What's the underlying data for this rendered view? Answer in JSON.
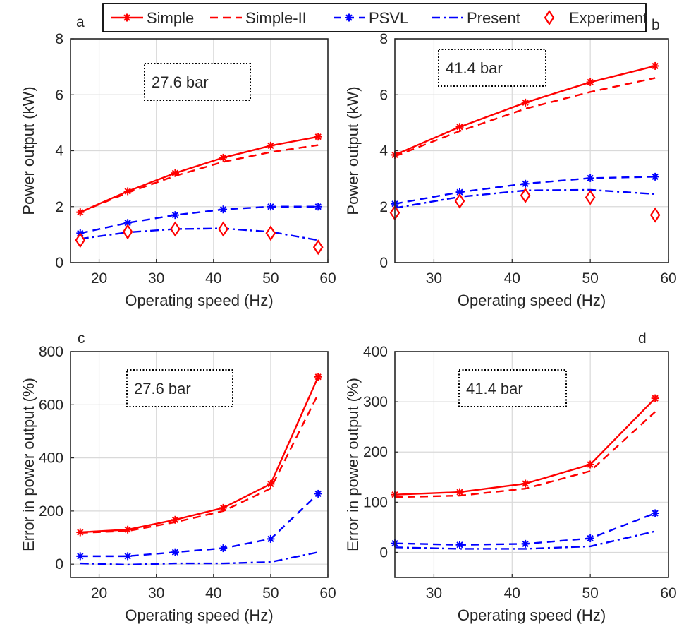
{
  "colors": {
    "red": "#ff0000",
    "blue": "#0000ff",
    "grid": "#d9d9d9",
    "axis": "#262626"
  },
  "legend": {
    "entries": [
      {
        "label": "Simple",
        "color": "#ff0000",
        "line": "solid",
        "marker": "asterisk"
      },
      {
        "label": "Simple-II",
        "color": "#ff0000",
        "line": "dashed",
        "marker": "none"
      },
      {
        "label": "PSVL",
        "color": "#0000ff",
        "line": "dashed",
        "marker": "asterisk"
      },
      {
        "label": "Present",
        "color": "#0000ff",
        "line": "dashdot",
        "marker": "none"
      },
      {
        "label": "Experiment",
        "color": "#ff0000",
        "line": "none",
        "marker": "diamond"
      }
    ]
  },
  "chart_data": [
    {
      "panel_label": "a",
      "type": "line",
      "annotation": "27.6 bar",
      "xlabel": "Operating speed (Hz)",
      "ylabel": "Power output (kW)",
      "xlim": [
        15,
        60
      ],
      "ylim": [
        0,
        8
      ],
      "xticks": [
        20,
        30,
        40,
        50,
        60
      ],
      "yticks": [
        0,
        2,
        4,
        6,
        8
      ],
      "grid": true,
      "x": [
        16.7,
        25,
        33.3,
        41.7,
        50,
        58.3
      ],
      "series": [
        {
          "name": "Simple",
          "values": [
            1.8,
            2.55,
            3.2,
            3.75,
            4.18,
            4.5
          ]
        },
        {
          "name": "Simple-II",
          "values": [
            1.8,
            2.5,
            3.1,
            3.6,
            3.95,
            4.2
          ]
        },
        {
          "name": "PSVL",
          "values": [
            1.05,
            1.42,
            1.7,
            1.9,
            2.0,
            2.0
          ]
        },
        {
          "name": "Present",
          "values": [
            0.85,
            1.08,
            1.2,
            1.22,
            1.1,
            0.8
          ]
        },
        {
          "name": "Experiment",
          "values": [
            0.8,
            1.1,
            1.2,
            1.2,
            1.05,
            0.55
          ]
        }
      ]
    },
    {
      "panel_label": "b",
      "type": "line",
      "annotation": "41.4 bar",
      "xlabel": "Operating speed (Hz)",
      "ylabel": "Power output (kW)",
      "xlim": [
        25,
        60
      ],
      "ylim": [
        0,
        8
      ],
      "xticks": [
        30,
        40,
        50,
        60
      ],
      "yticks": [
        0,
        2,
        4,
        6,
        8
      ],
      "grid": true,
      "x": [
        25,
        33.3,
        41.7,
        50,
        58.3
      ],
      "series": [
        {
          "name": "Simple",
          "values": [
            3.85,
            4.85,
            5.72,
            6.45,
            7.03
          ]
        },
        {
          "name": "Simple-II",
          "values": [
            3.8,
            4.7,
            5.5,
            6.1,
            6.6
          ]
        },
        {
          "name": "PSVL",
          "values": [
            2.1,
            2.52,
            2.82,
            3.02,
            3.07
          ]
        },
        {
          "name": "Present",
          "values": [
            1.95,
            2.35,
            2.58,
            2.6,
            2.45
          ]
        },
        {
          "name": "Experiment",
          "values": [
            1.78,
            2.2,
            2.4,
            2.33,
            1.7
          ]
        }
      ]
    },
    {
      "panel_label": "c",
      "type": "line",
      "annotation": "27.6 bar",
      "xlabel": "Operating speed (Hz)",
      "ylabel": "Error in power output (%)",
      "xlim": [
        15,
        60
      ],
      "ylim": [
        -50,
        800
      ],
      "xticks": [
        20,
        30,
        40,
        50,
        60
      ],
      "yticks": [
        0,
        200,
        400,
        600,
        800
      ],
      "grid": true,
      "x": [
        16.7,
        25,
        33.3,
        41.7,
        50,
        58.3
      ],
      "series": [
        {
          "name": "Simple",
          "values": [
            120,
            130,
            167,
            212,
            302,
            705
          ]
        },
        {
          "name": "Simple-II",
          "values": [
            118,
            125,
            158,
            200,
            285,
            640
          ]
        },
        {
          "name": "PSVL",
          "values": [
            30,
            30,
            45,
            60,
            95,
            265
          ]
        },
        {
          "name": "Present",
          "values": [
            3,
            -2,
            3,
            3,
            8,
            45
          ]
        }
      ]
    },
    {
      "panel_label": "d",
      "type": "line",
      "annotation": "41.4 bar",
      "xlabel": "Operating speed (Hz)",
      "ylabel": "Error in power output (%)",
      "xlim": [
        25,
        60
      ],
      "ylim": [
        -50,
        400
      ],
      "xticks": [
        30,
        40,
        50,
        60
      ],
      "yticks": [
        0,
        100,
        200,
        300,
        400
      ],
      "grid": true,
      "x": [
        25,
        33.3,
        41.7,
        50,
        58.3
      ],
      "series": [
        {
          "name": "Simple",
          "values": [
            115,
            120,
            137,
            175,
            307
          ]
        },
        {
          "name": "Simple-II",
          "values": [
            110,
            113,
            127,
            162,
            280
          ]
        },
        {
          "name": "PSVL",
          "values": [
            18,
            15,
            17,
            28,
            78
          ]
        },
        {
          "name": "Present",
          "values": [
            10,
            7,
            7,
            12,
            42
          ]
        }
      ]
    }
  ]
}
